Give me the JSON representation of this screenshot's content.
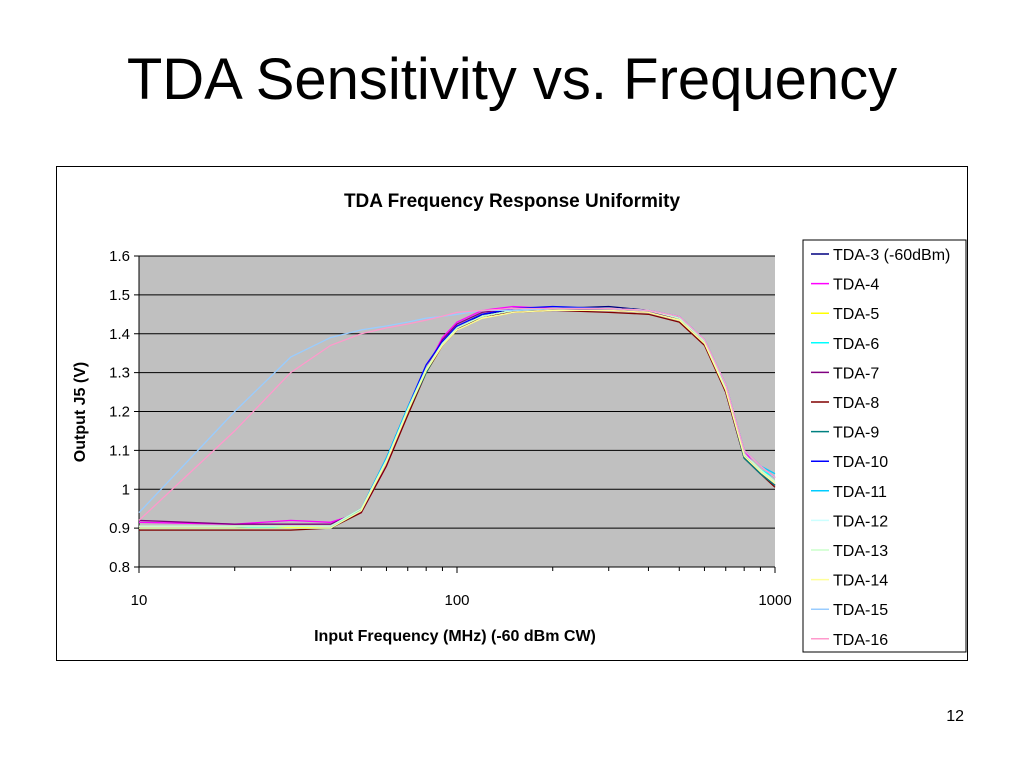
{
  "slide": {
    "title": "TDA Sensitivity vs. Frequency",
    "page_number": "12"
  },
  "colors": {
    "plot_background": "#c0c0c0",
    "gridline": "#000000"
  },
  "chart_data": {
    "type": "line",
    "title": "TDA Frequency Response Uniformity",
    "xlabel": "Input Frequency (MHz)  (-60 dBm CW)",
    "ylabel": "Output J5 (V)",
    "xscale": "log",
    "xlim": [
      10,
      1000
    ],
    "ylim": [
      0.8,
      1.6
    ],
    "xticks": [
      10,
      100,
      1000
    ],
    "xtick_labels": [
      "10",
      "100",
      "1000"
    ],
    "yticks": [
      0.8,
      0.9,
      1,
      1.1,
      1.2,
      1.3,
      1.4,
      1.5,
      1.6
    ],
    "ytick_labels": [
      "0.8",
      "0.9",
      "1",
      "1.1",
      "1.2",
      "1.3",
      "1.4",
      "1.5",
      "1.6"
    ],
    "grid": "horizontal",
    "legend_position": "right",
    "x": [
      10,
      20,
      30,
      40,
      50,
      60,
      70,
      80,
      90,
      100,
      120,
      150,
      200,
      300,
      400,
      500,
      600,
      700,
      800,
      900,
      1000
    ],
    "series": [
      {
        "name": "TDA-3 (-60dBm)",
        "color": "#000080",
        "values": [
          0.9,
          0.9,
          0.905,
          0.905,
          0.95,
          1.08,
          1.21,
          1.31,
          1.37,
          1.41,
          1.45,
          1.46,
          1.465,
          1.47,
          1.46,
          1.44,
          1.38,
          1.25,
          1.08,
          1.04,
          1.01
        ]
      },
      {
        "name": "TDA-4",
        "color": "#ff00ff",
        "values": [
          0.915,
          0.91,
          0.92,
          0.915,
          0.94,
          1.06,
          1.2,
          1.31,
          1.39,
          1.43,
          1.46,
          1.47,
          1.465,
          1.46,
          1.455,
          1.44,
          1.38,
          1.27,
          1.1,
          1.04,
          1.01
        ]
      },
      {
        "name": "TDA-5",
        "color": "#ffff00",
        "values": [
          0.9,
          0.9,
          0.902,
          0.905,
          0.945,
          1.07,
          1.2,
          1.3,
          1.37,
          1.41,
          1.44,
          1.455,
          1.46,
          1.46,
          1.455,
          1.435,
          1.375,
          1.26,
          1.09,
          1.04,
          1.01
        ]
      },
      {
        "name": "TDA-6",
        "color": "#00ffff",
        "values": [
          0.9,
          0.9,
          0.905,
          0.905,
          0.95,
          1.08,
          1.21,
          1.31,
          1.375,
          1.415,
          1.445,
          1.46,
          1.465,
          1.465,
          1.46,
          1.44,
          1.38,
          1.26,
          1.09,
          1.05,
          1.03
        ]
      },
      {
        "name": "TDA-7",
        "color": "#800080",
        "values": [
          0.92,
          0.91,
          0.91,
          0.91,
          0.945,
          1.07,
          1.2,
          1.31,
          1.385,
          1.425,
          1.455,
          1.465,
          1.465,
          1.46,
          1.455,
          1.44,
          1.375,
          1.26,
          1.09,
          1.04,
          1.01
        ]
      },
      {
        "name": "TDA-8",
        "color": "#800000",
        "values": [
          0.895,
          0.895,
          0.895,
          0.9,
          0.94,
          1.06,
          1.19,
          1.3,
          1.37,
          1.41,
          1.445,
          1.455,
          1.46,
          1.455,
          1.45,
          1.43,
          1.37,
          1.25,
          1.08,
          1.04,
          1.005
        ]
      },
      {
        "name": "TDA-9",
        "color": "#008080",
        "values": [
          0.9,
          0.9,
          0.9,
          0.9,
          0.945,
          1.07,
          1.2,
          1.3,
          1.375,
          1.415,
          1.445,
          1.46,
          1.465,
          1.465,
          1.46,
          1.44,
          1.38,
          1.26,
          1.08,
          1.04,
          1.01
        ]
      },
      {
        "name": "TDA-10",
        "color": "#0000ff",
        "values": [
          0.905,
          0.905,
          0.905,
          0.905,
          0.95,
          1.08,
          1.21,
          1.32,
          1.38,
          1.42,
          1.45,
          1.465,
          1.47,
          1.465,
          1.46,
          1.445,
          1.385,
          1.27,
          1.1,
          1.06,
          1.03
        ]
      },
      {
        "name": "TDA-11",
        "color": "#00ccff",
        "values": [
          0.9,
          0.9,
          0.9,
          0.9,
          0.95,
          1.08,
          1.21,
          1.31,
          1.375,
          1.415,
          1.445,
          1.46,
          1.465,
          1.465,
          1.46,
          1.445,
          1.385,
          1.27,
          1.1,
          1.06,
          1.04
        ]
      },
      {
        "name": "TDA-12",
        "color": "#ccffff",
        "values": [
          0.905,
          0.905,
          0.905,
          0.905,
          0.95,
          1.075,
          1.205,
          1.31,
          1.375,
          1.415,
          1.445,
          1.46,
          1.465,
          1.465,
          1.46,
          1.44,
          1.38,
          1.26,
          1.09,
          1.05,
          1.02
        ]
      },
      {
        "name": "TDA-13",
        "color": "#ccffcc",
        "values": [
          0.905,
          0.905,
          0.905,
          0.905,
          0.95,
          1.075,
          1.205,
          1.31,
          1.375,
          1.415,
          1.445,
          1.46,
          1.465,
          1.465,
          1.46,
          1.44,
          1.38,
          1.26,
          1.09,
          1.05,
          1.02
        ]
      },
      {
        "name": "TDA-14",
        "color": "#ffff99",
        "values": [
          0.9,
          0.9,
          0.9,
          0.9,
          0.945,
          1.07,
          1.2,
          1.305,
          1.37,
          1.41,
          1.44,
          1.455,
          1.46,
          1.46,
          1.455,
          1.435,
          1.375,
          1.255,
          1.085,
          1.045,
          1.015
        ]
      },
      {
        "name": "TDA-15",
        "color": "#99ccff",
        "values": [
          0.94,
          1.2,
          1.34,
          1.39,
          1.41,
          1.42,
          1.43,
          1.44,
          1.445,
          1.45,
          1.46,
          1.46,
          1.465,
          1.465,
          1.46,
          1.445,
          1.385,
          1.27,
          1.1,
          1.06,
          1.03
        ]
      },
      {
        "name": "TDA-16",
        "color": "#ff99cc",
        "values": [
          0.92,
          1.15,
          1.3,
          1.37,
          1.4,
          1.415,
          1.425,
          1.435,
          1.445,
          1.455,
          1.46,
          1.465,
          1.465,
          1.465,
          1.46,
          1.445,
          1.385,
          1.27,
          1.1,
          1.06,
          1.03
        ]
      }
    ]
  }
}
